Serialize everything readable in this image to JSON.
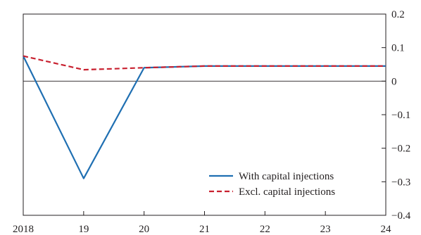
{
  "chart_data": {
    "type": "line",
    "x": [
      2018,
      2019,
      2020,
      2021,
      2022,
      2023,
      2024
    ],
    "x_tick_labels": [
      "2018",
      "19",
      "20",
      "21",
      "22",
      "23",
      "24"
    ],
    "xlim": [
      2018,
      2024
    ],
    "ylim": [
      -0.4,
      0.2
    ],
    "y_ticks": [
      0.2,
      0.1,
      0,
      -0.1,
      -0.2,
      -0.3,
      -0.4
    ],
    "y_tick_labels": [
      "0.2",
      "0.1",
      "0",
      "−0.1",
      "−0.2",
      "−0.3",
      "−0.4"
    ],
    "y_axis_side": "right",
    "zero_line": true,
    "grid": false,
    "legend_position": "bottom-right",
    "series": [
      {
        "name": "With capital injections",
        "values": [
          0.075,
          -0.29,
          0.04,
          0.045,
          0.045,
          0.045,
          0.045
        ],
        "color": "#1f6fb2",
        "style": "solid"
      },
      {
        "name": "Excl. capital injections",
        "values": [
          0.075,
          0.034,
          0.04,
          0.045,
          0.045,
          0.045,
          0.045
        ],
        "color": "#c8202f",
        "style": "dashed"
      }
    ]
  }
}
